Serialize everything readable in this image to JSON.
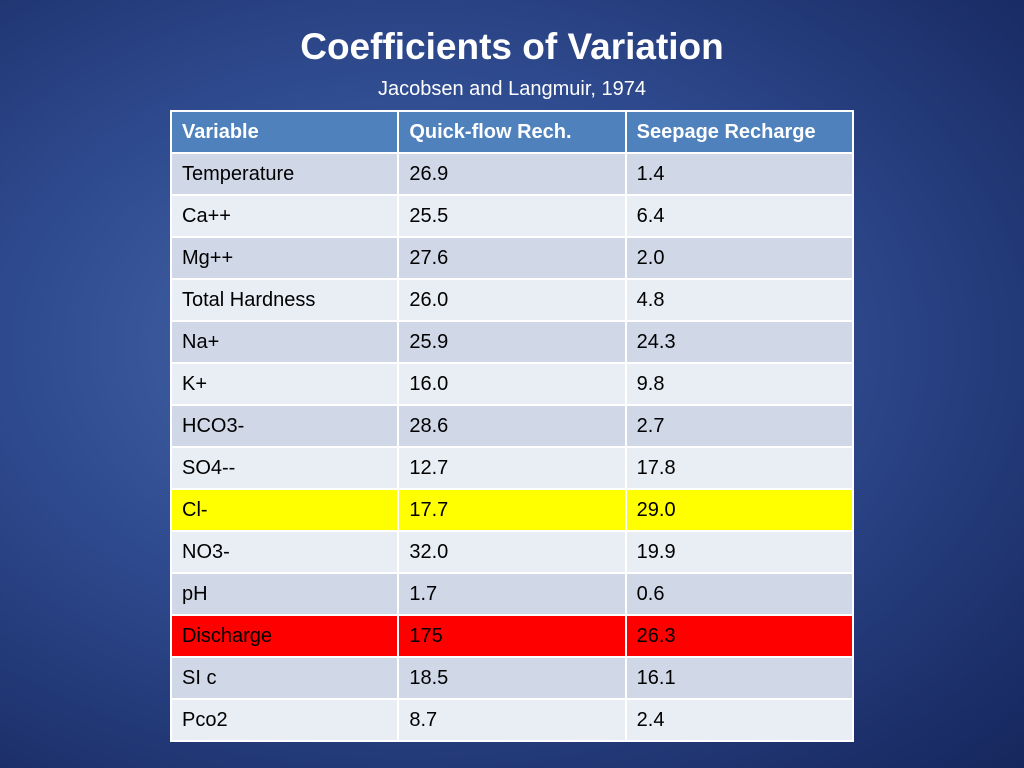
{
  "slide": {
    "title": "Coefficients of Variation",
    "subtitle": "Jacobsen and Langmuir, 1974"
  },
  "table": {
    "headers": [
      "Variable",
      "Quick-flow Rech.",
      "Seepage Recharge"
    ],
    "rows": [
      [
        "Temperature",
        "26.9",
        "1.4"
      ],
      [
        "Ca++",
        "25.5",
        "6.4"
      ],
      [
        "Mg++",
        "27.6",
        "2.0"
      ],
      [
        "Total Hardness",
        "26.0",
        "4.8"
      ],
      [
        "Na+",
        "25.9",
        "24.3"
      ],
      [
        "K+",
        "16.0",
        "9.8"
      ],
      [
        "HCO3-",
        "28.6",
        "2.7"
      ],
      [
        "SO4--",
        "12.7",
        "17.8"
      ],
      [
        "Cl-",
        "17.7",
        "29.0"
      ],
      [
        "NO3-",
        "32.0",
        "19.9"
      ],
      [
        "pH",
        "1.7",
        "0.6"
      ],
      [
        "Discharge",
        "175",
        "26.3"
      ],
      [
        "SI c",
        "18.5",
        "16.1"
      ],
      [
        "Pco2",
        "8.7",
        "2.4"
      ]
    ],
    "highlights": [
      {
        "row": "Cl-",
        "color": "#ffff00"
      },
      {
        "row": "Discharge",
        "color": "#ff0000"
      }
    ]
  },
  "colors": {
    "header": "#4f81bd",
    "row_dark": "#d0d8e8",
    "row_light": "#e9edf4",
    "background": "#2f4b8f"
  }
}
